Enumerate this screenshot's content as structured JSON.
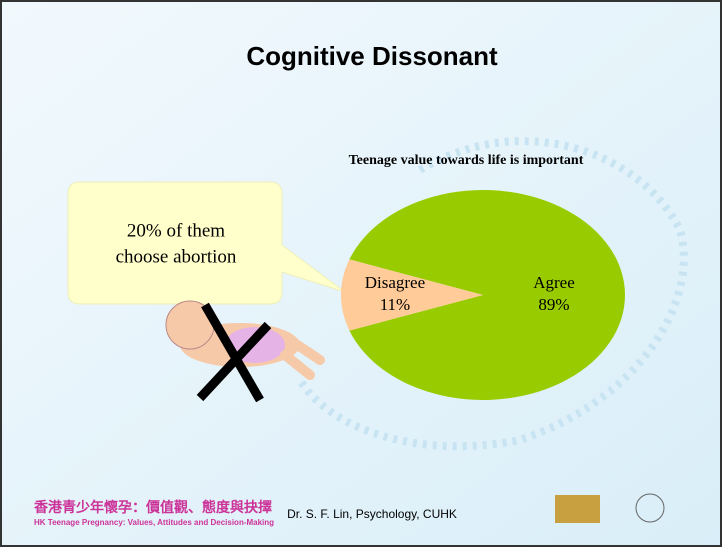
{
  "slide": {
    "title": "Cognitive Dissonant",
    "callout": [
      "20% of them",
      "choose abortion"
    ],
    "banner_cn": "香港青少年懷孕：價值觀、態度與抉擇",
    "banner_en": "HK Teenage Pregnancy: Values, Attitudes and Decision-Making",
    "footer": "Dr. S. F. Lin, Psychology, CUHK"
  },
  "chart_data": {
    "type": "pie",
    "title": "Teenage value towards  life is important",
    "categories": [
      "Agree",
      "Disagree"
    ],
    "values": [
      89,
      11
    ],
    "value_labels": [
      "89%",
      "11%"
    ],
    "colors": [
      "#99cc00",
      "#ffcc99"
    ]
  }
}
